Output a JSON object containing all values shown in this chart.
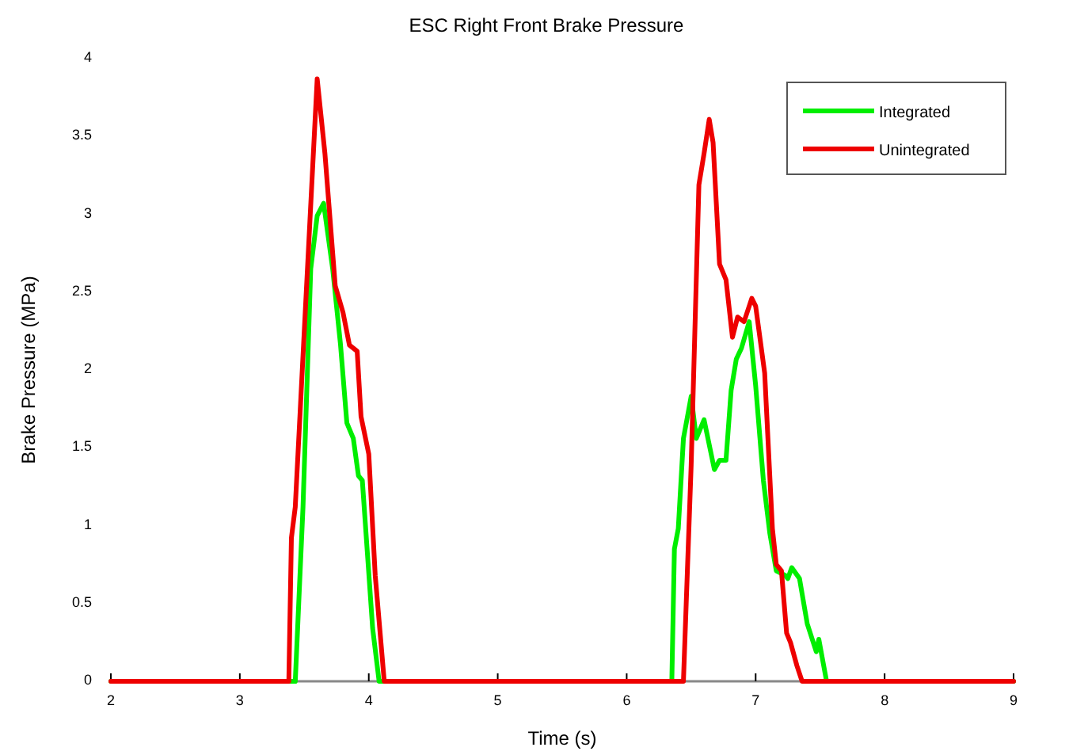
{
  "chart_data": {
    "type": "line",
    "title": "ESC Right Front Brake Pressure",
    "xlabel": "Time (s)",
    "ylabel": "Brake Pressure (MPa)",
    "xlim": [
      2,
      9
    ],
    "ylim": [
      0,
      4
    ],
    "xticks": [
      2,
      3,
      4,
      5,
      6,
      7,
      8,
      9
    ],
    "yticks": [
      0,
      0.5,
      1,
      1.5,
      2,
      2.5,
      3,
      3.5,
      4
    ],
    "grid": false,
    "legend": "top right",
    "marker": "none",
    "line_style": "solid",
    "series": [
      {
        "name": "Integrated",
        "color": "#00ee00",
        "x": [
          2,
          3.43,
          3.49,
          3.55,
          3.6,
          3.65,
          3.72,
          3.78,
          3.83,
          3.88,
          3.92,
          3.95,
          4.03,
          4.08,
          6.35,
          6.37,
          6.4,
          6.44,
          6.5,
          6.54,
          6.6,
          6.68,
          6.72,
          6.77,
          6.81,
          6.85,
          6.89,
          6.95,
          7.0,
          7.06,
          7.11,
          7.16,
          7.23,
          7.25,
          7.28,
          7.34,
          7.4,
          7.47,
          7.49,
          7.55,
          9
        ],
        "values": [
          0,
          0,
          1.12,
          2.65,
          2.99,
          3.07,
          2.65,
          2.17,
          1.66,
          1.56,
          1.32,
          1.29,
          0.34,
          0,
          0,
          0.85,
          0.98,
          1.56,
          1.83,
          1.56,
          1.68,
          1.36,
          1.42,
          1.42,
          1.87,
          2.07,
          2.14,
          2.31,
          1.9,
          1.29,
          0.95,
          0.71,
          0.68,
          0.66,
          0.73,
          0.66,
          0.37,
          0.19,
          0.27,
          0,
          0
        ]
      },
      {
        "name": "Unintegrated",
        "color": "#ee0000",
        "x": [
          2,
          3.38,
          3.4,
          3.43,
          3.6,
          3.66,
          3.74,
          3.8,
          3.85,
          3.91,
          3.94,
          4.0,
          4.05,
          4.12,
          6.44,
          6.5,
          6.56,
          6.6,
          6.64,
          6.67,
          6.72,
          6.77,
          6.82,
          6.86,
          6.91,
          6.97,
          7.0,
          7.07,
          7.13,
          7.16,
          7.2,
          7.24,
          7.27,
          7.32,
          7.36,
          9
        ],
        "values": [
          0,
          0,
          0.92,
          1.12,
          3.87,
          3.39,
          2.54,
          2.37,
          2.16,
          2.12,
          1.7,
          1.46,
          0.68,
          0,
          0,
          1.39,
          3.19,
          3.39,
          3.61,
          3.46,
          2.68,
          2.58,
          2.21,
          2.34,
          2.31,
          2.46,
          2.41,
          1.98,
          0.98,
          0.75,
          0.71,
          0.31,
          0.25,
          0.1,
          0,
          0
        ]
      }
    ]
  }
}
